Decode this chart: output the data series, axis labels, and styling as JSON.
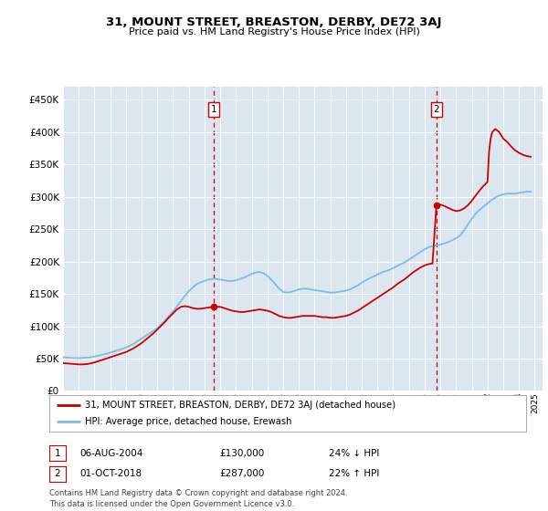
{
  "title": "31, MOUNT STREET, BREASTON, DERBY, DE72 3AJ",
  "subtitle": "Price paid vs. HM Land Registry's House Price Index (HPI)",
  "fig_bg_color": "#ffffff",
  "plot_bg_color": "#dce6f0",
  "hpi_color": "#7abfde",
  "price_color": "#cc0000",
  "ytick_values": [
    0,
    50000,
    100000,
    150000,
    200000,
    250000,
    300000,
    350000,
    400000,
    450000
  ],
  "ylim": [
    0,
    470000
  ],
  "xlim": [
    1995.0,
    2025.5
  ],
  "ann1_x": 2004.6,
  "ann2_x": 2018.75,
  "ann1_price": 130000,
  "ann2_price": 287000,
  "annotation1": {
    "label": "1",
    "note": "06-AUG-2004",
    "amount": "£130,000",
    "pct": "24% ↓ HPI"
  },
  "annotation2": {
    "label": "2",
    "note": "01-OCT-2018",
    "amount": "£287,000",
    "pct": "22% ↑ HPI"
  },
  "legend_line1": "31, MOUNT STREET, BREASTON, DERBY, DE72 3AJ (detached house)",
  "legend_line2": "HPI: Average price, detached house, Erewash",
  "footer": "Contains HM Land Registry data © Crown copyright and database right 2024.\nThis data is licensed under the Open Government Licence v3.0.",
  "hpi_data": [
    [
      1995.0,
      52000
    ],
    [
      1995.25,
      51500
    ],
    [
      1995.5,
      51000
    ],
    [
      1995.75,
      50800
    ],
    [
      1996.0,
      50500
    ],
    [
      1996.25,
      51000
    ],
    [
      1996.5,
      51500
    ],
    [
      1996.75,
      52000
    ],
    [
      1997.0,
      53000
    ],
    [
      1997.25,
      54500
    ],
    [
      1997.5,
      56000
    ],
    [
      1997.75,
      57500
    ],
    [
      1998.0,
      59000
    ],
    [
      1998.25,
      61000
    ],
    [
      1998.5,
      63000
    ],
    [
      1998.75,
      65000
    ],
    [
      1999.0,
      67000
    ],
    [
      1999.25,
      70000
    ],
    [
      1999.5,
      73000
    ],
    [
      1999.75,
      77000
    ],
    [
      2000.0,
      81000
    ],
    [
      2000.25,
      85000
    ],
    [
      2000.5,
      89000
    ],
    [
      2000.75,
      93000
    ],
    [
      2001.0,
      97000
    ],
    [
      2001.25,
      103000
    ],
    [
      2001.5,
      109000
    ],
    [
      2001.75,
      116000
    ],
    [
      2002.0,
      123000
    ],
    [
      2002.25,
      131000
    ],
    [
      2002.5,
      139000
    ],
    [
      2002.75,
      147000
    ],
    [
      2003.0,
      154000
    ],
    [
      2003.25,
      160000
    ],
    [
      2003.5,
      165000
    ],
    [
      2003.75,
      168000
    ],
    [
      2004.0,
      170000
    ],
    [
      2004.25,
      172000
    ],
    [
      2004.5,
      173000
    ],
    [
      2004.75,
      173000
    ],
    [
      2005.0,
      172000
    ],
    [
      2005.25,
      171000
    ],
    [
      2005.5,
      170000
    ],
    [
      2005.75,
      170000
    ],
    [
      2006.0,
      171000
    ],
    [
      2006.25,
      173000
    ],
    [
      2006.5,
      175000
    ],
    [
      2006.75,
      178000
    ],
    [
      2007.0,
      181000
    ],
    [
      2007.25,
      183000
    ],
    [
      2007.5,
      184000
    ],
    [
      2007.75,
      182000
    ],
    [
      2008.0,
      178000
    ],
    [
      2008.25,
      172000
    ],
    [
      2008.5,
      165000
    ],
    [
      2008.75,
      158000
    ],
    [
      2009.0,
      153000
    ],
    [
      2009.25,
      152000
    ],
    [
      2009.5,
      153000
    ],
    [
      2009.75,
      155000
    ],
    [
      2010.0,
      157000
    ],
    [
      2010.25,
      158000
    ],
    [
      2010.5,
      158000
    ],
    [
      2010.75,
      157000
    ],
    [
      2011.0,
      156000
    ],
    [
      2011.25,
      155000
    ],
    [
      2011.5,
      154000
    ],
    [
      2011.75,
      153000
    ],
    [
      2012.0,
      152000
    ],
    [
      2012.25,
      152000
    ],
    [
      2012.5,
      153000
    ],
    [
      2012.75,
      154000
    ],
    [
      2013.0,
      155000
    ],
    [
      2013.25,
      157000
    ],
    [
      2013.5,
      160000
    ],
    [
      2013.75,
      163000
    ],
    [
      2014.0,
      167000
    ],
    [
      2014.25,
      171000
    ],
    [
      2014.5,
      174000
    ],
    [
      2014.75,
      177000
    ],
    [
      2015.0,
      180000
    ],
    [
      2015.25,
      183000
    ],
    [
      2015.5,
      185000
    ],
    [
      2015.75,
      187000
    ],
    [
      2016.0,
      190000
    ],
    [
      2016.25,
      193000
    ],
    [
      2016.5,
      196000
    ],
    [
      2016.75,
      199000
    ],
    [
      2017.0,
      203000
    ],
    [
      2017.25,
      207000
    ],
    [
      2017.5,
      211000
    ],
    [
      2017.75,
      215000
    ],
    [
      2018.0,
      219000
    ],
    [
      2018.25,
      222000
    ],
    [
      2018.5,
      224000
    ],
    [
      2018.75,
      225000
    ],
    [
      2019.0,
      226000
    ],
    [
      2019.25,
      228000
    ],
    [
      2019.5,
      230000
    ],
    [
      2019.75,
      233000
    ],
    [
      2020.0,
      236000
    ],
    [
      2020.25,
      240000
    ],
    [
      2020.5,
      248000
    ],
    [
      2020.75,
      257000
    ],
    [
      2021.0,
      266000
    ],
    [
      2021.25,
      274000
    ],
    [
      2021.5,
      280000
    ],
    [
      2021.75,
      285000
    ],
    [
      2022.0,
      290000
    ],
    [
      2022.25,
      295000
    ],
    [
      2022.5,
      299000
    ],
    [
      2022.75,
      302000
    ],
    [
      2023.0,
      304000
    ],
    [
      2023.25,
      305000
    ],
    [
      2023.5,
      305000
    ],
    [
      2023.75,
      305000
    ],
    [
      2024.0,
      306000
    ],
    [
      2024.25,
      307000
    ],
    [
      2024.5,
      308000
    ],
    [
      2024.75,
      308000
    ]
  ],
  "price_data": [
    [
      1995.0,
      43000
    ],
    [
      1995.25,
      42500
    ],
    [
      1995.5,
      42000
    ],
    [
      1995.75,
      41500
    ],
    [
      1996.0,
      41000
    ],
    [
      1996.25,
      41000
    ],
    [
      1996.5,
      41500
    ],
    [
      1996.75,
      42500
    ],
    [
      1997.0,
      44000
    ],
    [
      1997.25,
      46000
    ],
    [
      1997.5,
      48000
    ],
    [
      1997.75,
      50000
    ],
    [
      1998.0,
      52000
    ],
    [
      1998.25,
      54000
    ],
    [
      1998.5,
      56000
    ],
    [
      1998.75,
      58000
    ],
    [
      1999.0,
      60000
    ],
    [
      1999.25,
      63000
    ],
    [
      1999.5,
      66000
    ],
    [
      1999.75,
      70000
    ],
    [
      2000.0,
      74000
    ],
    [
      2000.25,
      79000
    ],
    [
      2000.5,
      84000
    ],
    [
      2000.75,
      89000
    ],
    [
      2001.0,
      95000
    ],
    [
      2001.25,
      101000
    ],
    [
      2001.5,
      107000
    ],
    [
      2001.75,
      114000
    ],
    [
      2002.0,
      120000
    ],
    [
      2002.25,
      126000
    ],
    [
      2002.5,
      130000
    ],
    [
      2002.75,
      131000
    ],
    [
      2003.0,
      130000
    ],
    [
      2003.25,
      128000
    ],
    [
      2003.5,
      127000
    ],
    [
      2003.75,
      127000
    ],
    [
      2004.0,
      128000
    ],
    [
      2004.6,
      130000
    ],
    [
      2005.0,
      130000
    ],
    [
      2005.25,
      128000
    ],
    [
      2005.5,
      126000
    ],
    [
      2005.75,
      124000
    ],
    [
      2006.0,
      123000
    ],
    [
      2006.25,
      122000
    ],
    [
      2006.5,
      122000
    ],
    [
      2006.75,
      123000
    ],
    [
      2007.0,
      124000
    ],
    [
      2007.25,
      125000
    ],
    [
      2007.5,
      126000
    ],
    [
      2007.75,
      125000
    ],
    [
      2008.0,
      124000
    ],
    [
      2008.25,
      122000
    ],
    [
      2008.5,
      119000
    ],
    [
      2008.75,
      116000
    ],
    [
      2009.0,
      114000
    ],
    [
      2009.25,
      113000
    ],
    [
      2009.5,
      113000
    ],
    [
      2009.75,
      114000
    ],
    [
      2010.0,
      115000
    ],
    [
      2010.25,
      116000
    ],
    [
      2010.5,
      116000
    ],
    [
      2010.75,
      116000
    ],
    [
      2011.0,
      116000
    ],
    [
      2011.25,
      115000
    ],
    [
      2011.5,
      114000
    ],
    [
      2011.75,
      114000
    ],
    [
      2012.0,
      113000
    ],
    [
      2012.25,
      113000
    ],
    [
      2012.5,
      114000
    ],
    [
      2012.75,
      115000
    ],
    [
      2013.0,
      116000
    ],
    [
      2013.25,
      118000
    ],
    [
      2013.5,
      121000
    ],
    [
      2013.75,
      124000
    ],
    [
      2014.0,
      128000
    ],
    [
      2014.25,
      132000
    ],
    [
      2014.5,
      136000
    ],
    [
      2014.75,
      140000
    ],
    [
      2015.0,
      144000
    ],
    [
      2015.25,
      148000
    ],
    [
      2015.5,
      152000
    ],
    [
      2015.75,
      156000
    ],
    [
      2016.0,
      160000
    ],
    [
      2016.25,
      165000
    ],
    [
      2016.5,
      169000
    ],
    [
      2016.75,
      173000
    ],
    [
      2017.0,
      178000
    ],
    [
      2017.25,
      183000
    ],
    [
      2017.5,
      187000
    ],
    [
      2017.75,
      191000
    ],
    [
      2018.0,
      194000
    ],
    [
      2018.25,
      196000
    ],
    [
      2018.5,
      197000
    ],
    [
      2018.75,
      287000
    ],
    [
      2019.0,
      288000
    ],
    [
      2019.25,
      286000
    ],
    [
      2019.5,
      283000
    ],
    [
      2019.75,
      280000
    ],
    [
      2020.0,
      278000
    ],
    [
      2020.25,
      279000
    ],
    [
      2020.5,
      282000
    ],
    [
      2020.75,
      287000
    ],
    [
      2021.0,
      294000
    ],
    [
      2021.25,
      302000
    ],
    [
      2021.5,
      310000
    ],
    [
      2021.75,
      317000
    ],
    [
      2022.0,
      323000
    ],
    [
      2022.1,
      370000
    ],
    [
      2022.2,
      390000
    ],
    [
      2022.3,
      400000
    ],
    [
      2022.5,
      405000
    ],
    [
      2022.75,
      400000
    ],
    [
      2023.0,
      390000
    ],
    [
      2023.25,
      385000
    ],
    [
      2023.5,
      378000
    ],
    [
      2023.75,
      372000
    ],
    [
      2024.0,
      368000
    ],
    [
      2024.25,
      365000
    ],
    [
      2024.5,
      363000
    ],
    [
      2024.75,
      362000
    ]
  ]
}
